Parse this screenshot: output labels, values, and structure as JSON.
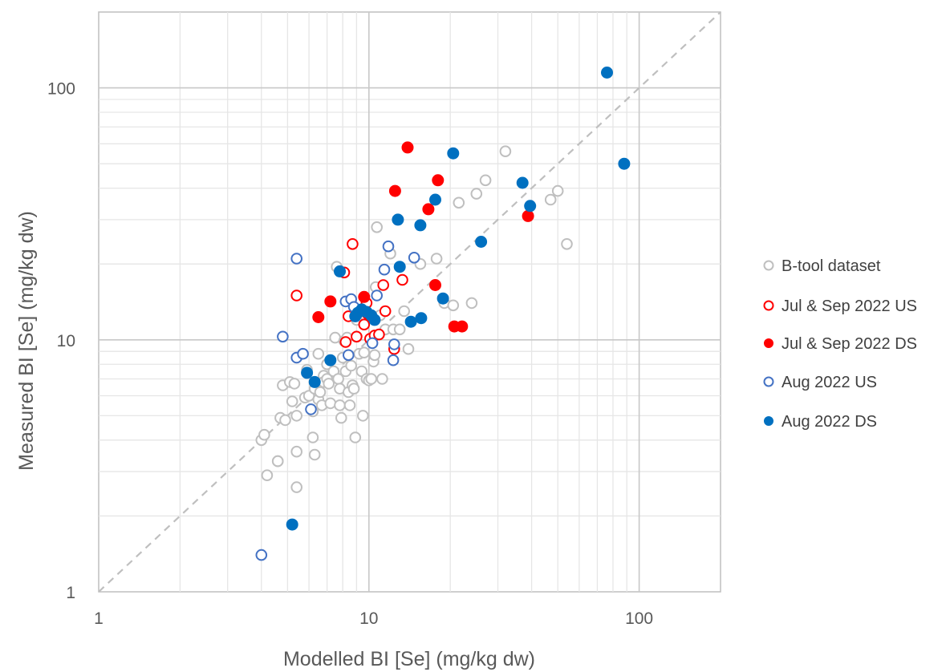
{
  "chart_data": {
    "type": "scatter",
    "title": "",
    "xlabel": "Modelled BI [Se] (mg/kg dw)",
    "ylabel": "Measured BI [Se] (mg/kg dw)",
    "x_scale": "log",
    "y_scale": "log",
    "xlim": [
      1,
      200
    ],
    "ylim": [
      1,
      200
    ],
    "x_ticks": [
      "1",
      "10",
      "100"
    ],
    "y_ticks": [
      "1",
      "10",
      "100"
    ],
    "grid": true,
    "reference_line": "1:1 dashed",
    "legend_position": "right",
    "series": [
      {
        "name": "B-tool dataset",
        "style": "open",
        "color": "#bfbfbf",
        "points": [
          [
            4.0,
            4.0
          ],
          [
            4.1,
            4.2
          ],
          [
            4.2,
            2.9
          ],
          [
            4.6,
            3.3
          ],
          [
            4.6,
            3.3
          ],
          [
            4.7,
            4.9
          ],
          [
            4.8,
            6.6
          ],
          [
            4.9,
            4.8
          ],
          [
            5.1,
            6.8
          ],
          [
            5.2,
            5.7
          ],
          [
            5.3,
            6.7
          ],
          [
            5.4,
            3.6
          ],
          [
            5.4,
            5.0
          ],
          [
            5.4,
            2.6
          ],
          [
            5.8,
            5.9
          ],
          [
            5.9,
            7.6
          ],
          [
            6.0,
            6.0
          ],
          [
            6.2,
            4.1
          ],
          [
            6.2,
            5.2
          ],
          [
            6.3,
            3.5
          ],
          [
            6.3,
            6.4
          ],
          [
            6.5,
            8.8
          ],
          [
            6.5,
            5.8
          ],
          [
            6.6,
            6.2
          ],
          [
            6.7,
            5.5
          ],
          [
            6.8,
            7.2
          ],
          [
            6.8,
            6.8
          ],
          [
            7.0,
            7.0
          ],
          [
            7.0,
            8.0
          ],
          [
            7.1,
            6.7
          ],
          [
            7.2,
            5.6
          ],
          [
            7.4,
            7.5
          ],
          [
            7.5,
            10.2
          ],
          [
            7.6,
            19.5
          ],
          [
            7.7,
            7.0
          ],
          [
            7.8,
            6.4
          ],
          [
            7.8,
            5.5
          ],
          [
            7.9,
            4.9
          ],
          [
            8.0,
            8.5
          ],
          [
            8.1,
            9.9
          ],
          [
            8.2,
            7.5
          ],
          [
            8.3,
            10.2
          ],
          [
            8.4,
            6.2
          ],
          [
            8.5,
            5.5
          ],
          [
            8.6,
            7.9
          ],
          [
            8.7,
            6.6
          ],
          [
            8.8,
            6.4
          ],
          [
            8.9,
            4.1
          ],
          [
            9.0,
            12.0
          ],
          [
            9.2,
            8.8
          ],
          [
            9.4,
            7.5
          ],
          [
            9.5,
            5.0
          ],
          [
            9.6,
            8.9
          ],
          [
            9.8,
            7.0
          ],
          [
            10.0,
            6.9
          ],
          [
            10.2,
            7.0
          ],
          [
            10.4,
            8.2
          ],
          [
            10.5,
            8.7
          ],
          [
            10.6,
            16.2
          ],
          [
            10.7,
            28.0
          ],
          [
            11.0,
            12.5
          ],
          [
            11.2,
            7.0
          ],
          [
            11.5,
            11.0
          ],
          [
            12.0,
            22.0
          ],
          [
            12.3,
            11.0
          ],
          [
            13.0,
            11.0
          ],
          [
            13.5,
            13.0
          ],
          [
            14.0,
            9.2
          ],
          [
            15.5,
            20.0
          ],
          [
            17.8,
            21.0
          ],
          [
            19.0,
            14.0
          ],
          [
            20.5,
            13.7
          ],
          [
            21.5,
            35.0
          ],
          [
            24.0,
            14.0
          ],
          [
            25.0,
            38.0
          ],
          [
            27.0,
            43.0
          ],
          [
            32.0,
            56.0
          ],
          [
            47.0,
            36.0
          ],
          [
            50.0,
            39.0
          ],
          [
            54.0,
            24.0
          ]
        ]
      },
      {
        "name": "Jul & Sep 2022 US",
        "style": "open",
        "color": "#ff0000",
        "points": [
          [
            5.4,
            15.0
          ],
          [
            8.1,
            18.5
          ],
          [
            8.2,
            9.8
          ],
          [
            8.4,
            12.4
          ],
          [
            8.7,
            24.0
          ],
          [
            9.0,
            10.3
          ],
          [
            9.6,
            11.5
          ],
          [
            9.8,
            14.0
          ],
          [
            10.1,
            10.1
          ],
          [
            10.5,
            10.4
          ],
          [
            10.9,
            10.5
          ],
          [
            11.3,
            16.5
          ],
          [
            11.5,
            13.0
          ],
          [
            12.4,
            9.2
          ],
          [
            13.3,
            17.3
          ]
        ]
      },
      {
        "name": "Jul & Sep 2022 DS",
        "style": "filled",
        "color": "#ff0000",
        "points": [
          [
            6.5,
            12.3
          ],
          [
            7.2,
            14.2
          ],
          [
            9.6,
            14.8
          ],
          [
            9.9,
            12.7
          ],
          [
            12.5,
            39.0
          ],
          [
            13.9,
            58.0
          ],
          [
            16.6,
            33.0
          ],
          [
            17.6,
            16.5
          ],
          [
            18.0,
            43.0
          ],
          [
            20.7,
            11.3
          ],
          [
            22.1,
            11.3
          ],
          [
            38.8,
            31.0
          ]
        ]
      },
      {
        "name": "Aug 2022 US",
        "style": "open",
        "color": "#4472c4",
        "points": [
          [
            4.0,
            1.4
          ],
          [
            4.8,
            10.3
          ],
          [
            5.4,
            21.0
          ],
          [
            5.4,
            8.5
          ],
          [
            5.7,
            8.8
          ],
          [
            6.1,
            5.3
          ],
          [
            8.2,
            14.2
          ],
          [
            8.4,
            8.7
          ],
          [
            8.6,
            14.5
          ],
          [
            8.8,
            13.5
          ],
          [
            10.3,
            9.7
          ],
          [
            10.7,
            15.0
          ],
          [
            11.4,
            19.0
          ],
          [
            11.8,
            23.5
          ],
          [
            12.3,
            8.3
          ],
          [
            12.4,
            9.6
          ],
          [
            14.7,
            21.2
          ]
        ]
      },
      {
        "name": "Aug 2022 DS",
        "style": "filled",
        "color": "#0070c0",
        "points": [
          [
            5.2,
            1.85
          ],
          [
            5.9,
            7.4
          ],
          [
            6.3,
            6.8
          ],
          [
            7.2,
            8.3
          ],
          [
            7.8,
            18.7
          ],
          [
            8.9,
            12.4
          ],
          [
            9.1,
            12.8
          ],
          [
            9.4,
            13.2
          ],
          [
            9.8,
            12.9
          ],
          [
            10.2,
            12.5
          ],
          [
            10.5,
            12.0
          ],
          [
            12.8,
            30.0
          ],
          [
            13.0,
            19.5
          ],
          [
            14.3,
            11.8
          ],
          [
            15.5,
            28.5
          ],
          [
            15.6,
            12.2
          ],
          [
            17.6,
            36.0
          ],
          [
            18.8,
            14.6
          ],
          [
            20.5,
            55.0
          ],
          [
            26.0,
            24.5
          ],
          [
            37.0,
            42.0
          ],
          [
            39.5,
            34.0
          ],
          [
            76.0,
            115.0
          ],
          [
            88.0,
            50.0
          ]
        ]
      }
    ]
  }
}
